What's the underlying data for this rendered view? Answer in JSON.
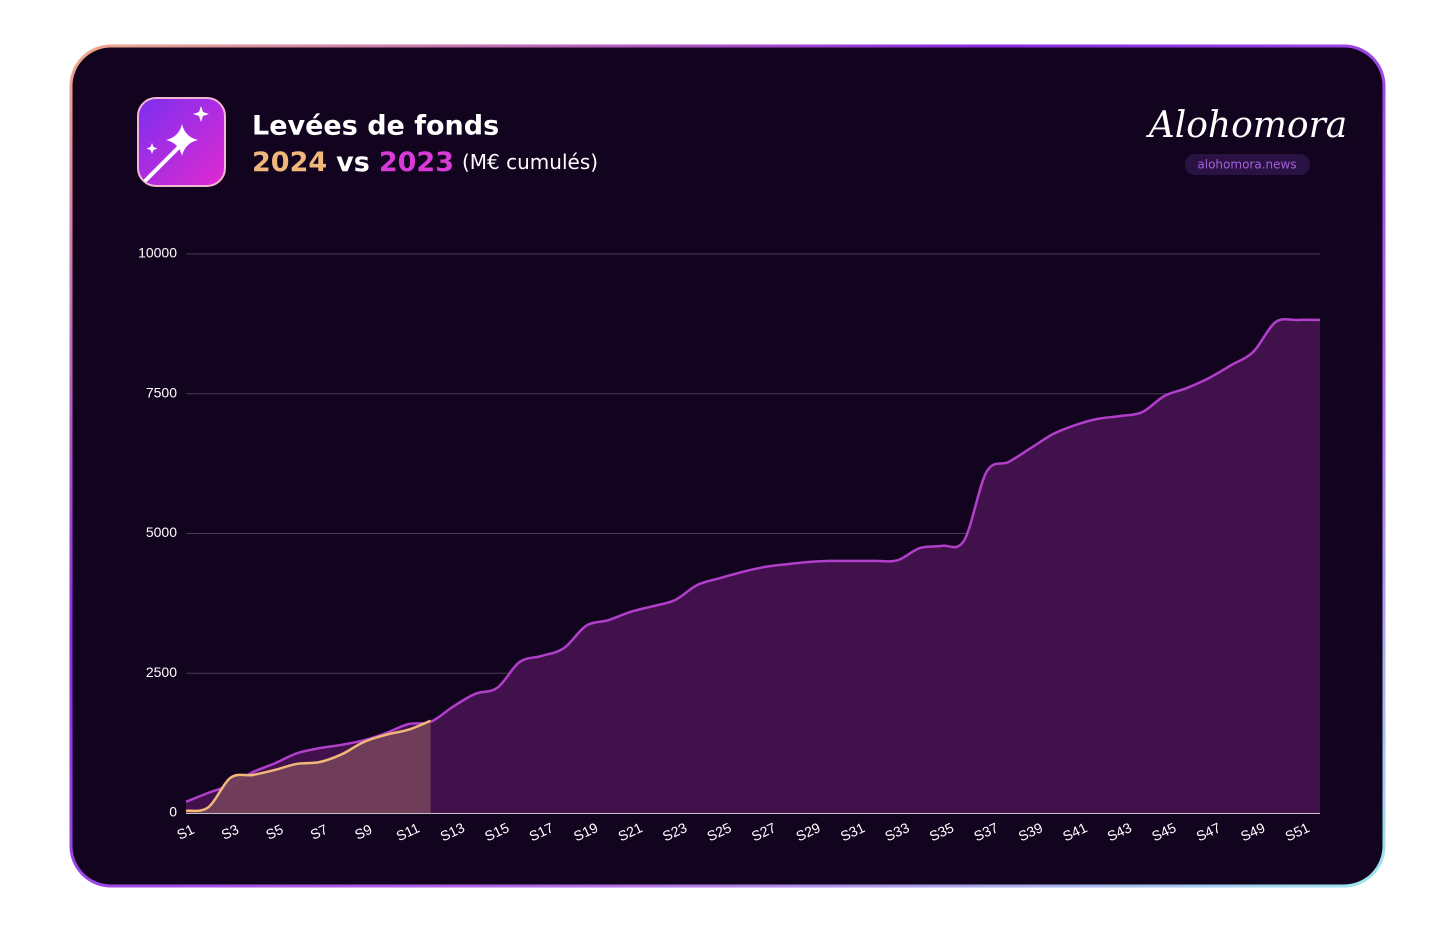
{
  "chart_data": {
    "type": "area",
    "title": "Levées de fonds",
    "subtitle_joiner": "vs",
    "unit_note": "(M€ cumulés)",
    "brand": "Alohomora",
    "brand_url": "alohomora.news",
    "categories": [
      "S1",
      null,
      "S3",
      null,
      "S5",
      null,
      "S7",
      null,
      "S9",
      null,
      "S11",
      null,
      "S13",
      null,
      "S15",
      null,
      "S17",
      null,
      "S19",
      null,
      "S21",
      null,
      "S23",
      null,
      "S25",
      null,
      "S27",
      null,
      "S29",
      null,
      "S31",
      null,
      "S33",
      null,
      "S35",
      null,
      "S37",
      null,
      "S39",
      null,
      "S41",
      null,
      "S43",
      null,
      "S45",
      null,
      "S47",
      null,
      "S49",
      null,
      "S51",
      null
    ],
    "series": [
      {
        "name": "2023",
        "color": "#b13fca",
        "fill": "#45124f",
        "values": [
          200,
          360,
          500,
          730,
          890,
          1070,
          1160,
          1220,
          1300,
          1430,
          1590,
          1630,
          1900,
          2130,
          2240,
          2700,
          2810,
          2950,
          3350,
          3450,
          3600,
          3700,
          3810,
          4080,
          4200,
          4310,
          4400,
          4450,
          4490,
          4510,
          4510,
          4510,
          4520,
          4740,
          4780,
          4880,
          6100,
          6280,
          6530,
          6780,
          6940,
          7050,
          7100,
          7170,
          7460,
          7600,
          7780,
          8010,
          8250,
          8780,
          8820,
          8820
        ]
      },
      {
        "name": "2024",
        "color": "#f2b77a",
        "fill": "#72405a",
        "values": [
          40,
          100,
          630,
          680,
          770,
          880,
          910,
          1050,
          1270,
          1400,
          1490,
          1650,
          null,
          null,
          null,
          null,
          null,
          null,
          null,
          null,
          null,
          null,
          null,
          null,
          null,
          null,
          null,
          null,
          null,
          null,
          null,
          null,
          null,
          null,
          null,
          null,
          null,
          null,
          null,
          null,
          null,
          null,
          null,
          null,
          null,
          null,
          null,
          null,
          null,
          null,
          null,
          null
        ]
      }
    ],
    "ylim": [
      0,
      10000
    ],
    "yticks": [
      0,
      2500,
      5000,
      7500,
      10000
    ],
    "grid": true
  }
}
